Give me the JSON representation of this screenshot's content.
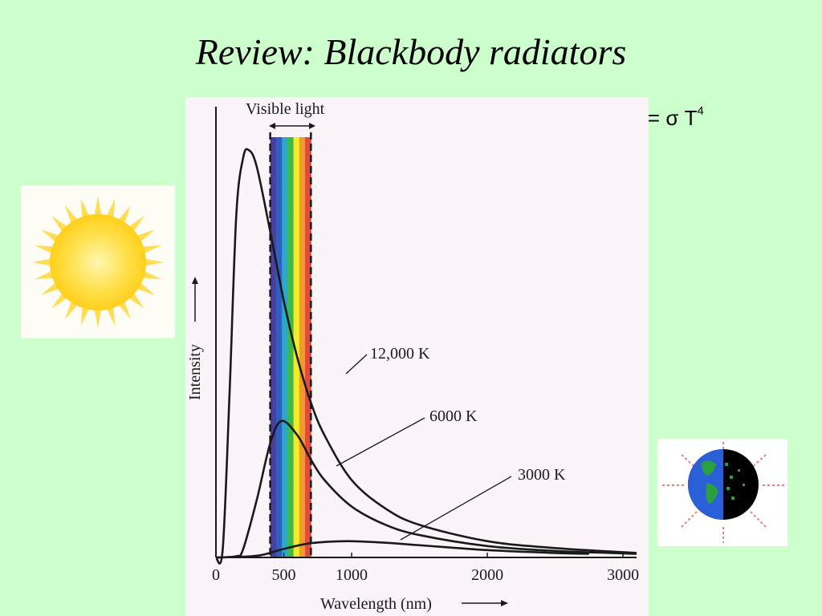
{
  "slide": {
    "title": "Review: Blackbody radiators",
    "formula_text": "Intensity of radiation = σ T",
    "formula_sup": "4"
  },
  "images": {
    "sun": "sun-icon",
    "earth": "earth-icon"
  },
  "colors": {
    "background": "#ccffcc",
    "curve": "#1a1a1a",
    "spectrum": [
      "#4b3f9a",
      "#2f5fc0",
      "#2aa8c9",
      "#3fb84a",
      "#f3ea2a",
      "#f39a2a",
      "#e04a3a"
    ]
  },
  "chart_data": {
    "type": "line",
    "title": "",
    "xlabel": "Wavelength (nm)",
    "ylabel": "Intensity",
    "xlim": [
      0,
      3100
    ],
    "ylim": [
      0,
      1
    ],
    "xticks": [
      0,
      500,
      1000,
      2000,
      3000
    ],
    "x_tick_labels": [
      "0",
      "500",
      "1000",
      "2000",
      "3000"
    ],
    "visible_band": {
      "label": "Visible light",
      "range": [
        400,
        700
      ]
    },
    "series": [
      {
        "name": "12,000 K",
        "temperature": 12000,
        "x": [
          0,
          50,
          100,
          150,
          200,
          241,
          300,
          400,
          500,
          600,
          700,
          800,
          1000,
          1250,
          1500,
          2000,
          2500,
          3000,
          3100
        ],
        "y": [
          0,
          0.02,
          0.4,
          0.84,
          0.98,
          1.0,
          0.96,
          0.8,
          0.63,
          0.49,
          0.38,
          0.3,
          0.19,
          0.12,
          0.08,
          0.04,
          0.023,
          0.013,
          0.011
        ]
      },
      {
        "name": "6000 K",
        "temperature": 6000,
        "x": [
          0,
          150,
          200,
          300,
          400,
          483,
          600,
          700,
          800,
          1000,
          1250,
          1500,
          2000,
          2500,
          3000,
          3100
        ],
        "y": [
          0,
          0.003,
          0.02,
          0.14,
          0.28,
          0.335,
          0.3,
          0.24,
          0.19,
          0.125,
          0.08,
          0.055,
          0.028,
          0.016,
          0.01,
          0.009
        ]
      },
      {
        "name": "3000 K",
        "temperature": 3000,
        "x": [
          0,
          300,
          500,
          700,
          966,
          1250,
          1500,
          2000,
          2500,
          2750
        ],
        "y": [
          0,
          0.004,
          0.021,
          0.035,
          0.04,
          0.036,
          0.03,
          0.018,
          0.011,
          0.009
        ]
      }
    ]
  }
}
